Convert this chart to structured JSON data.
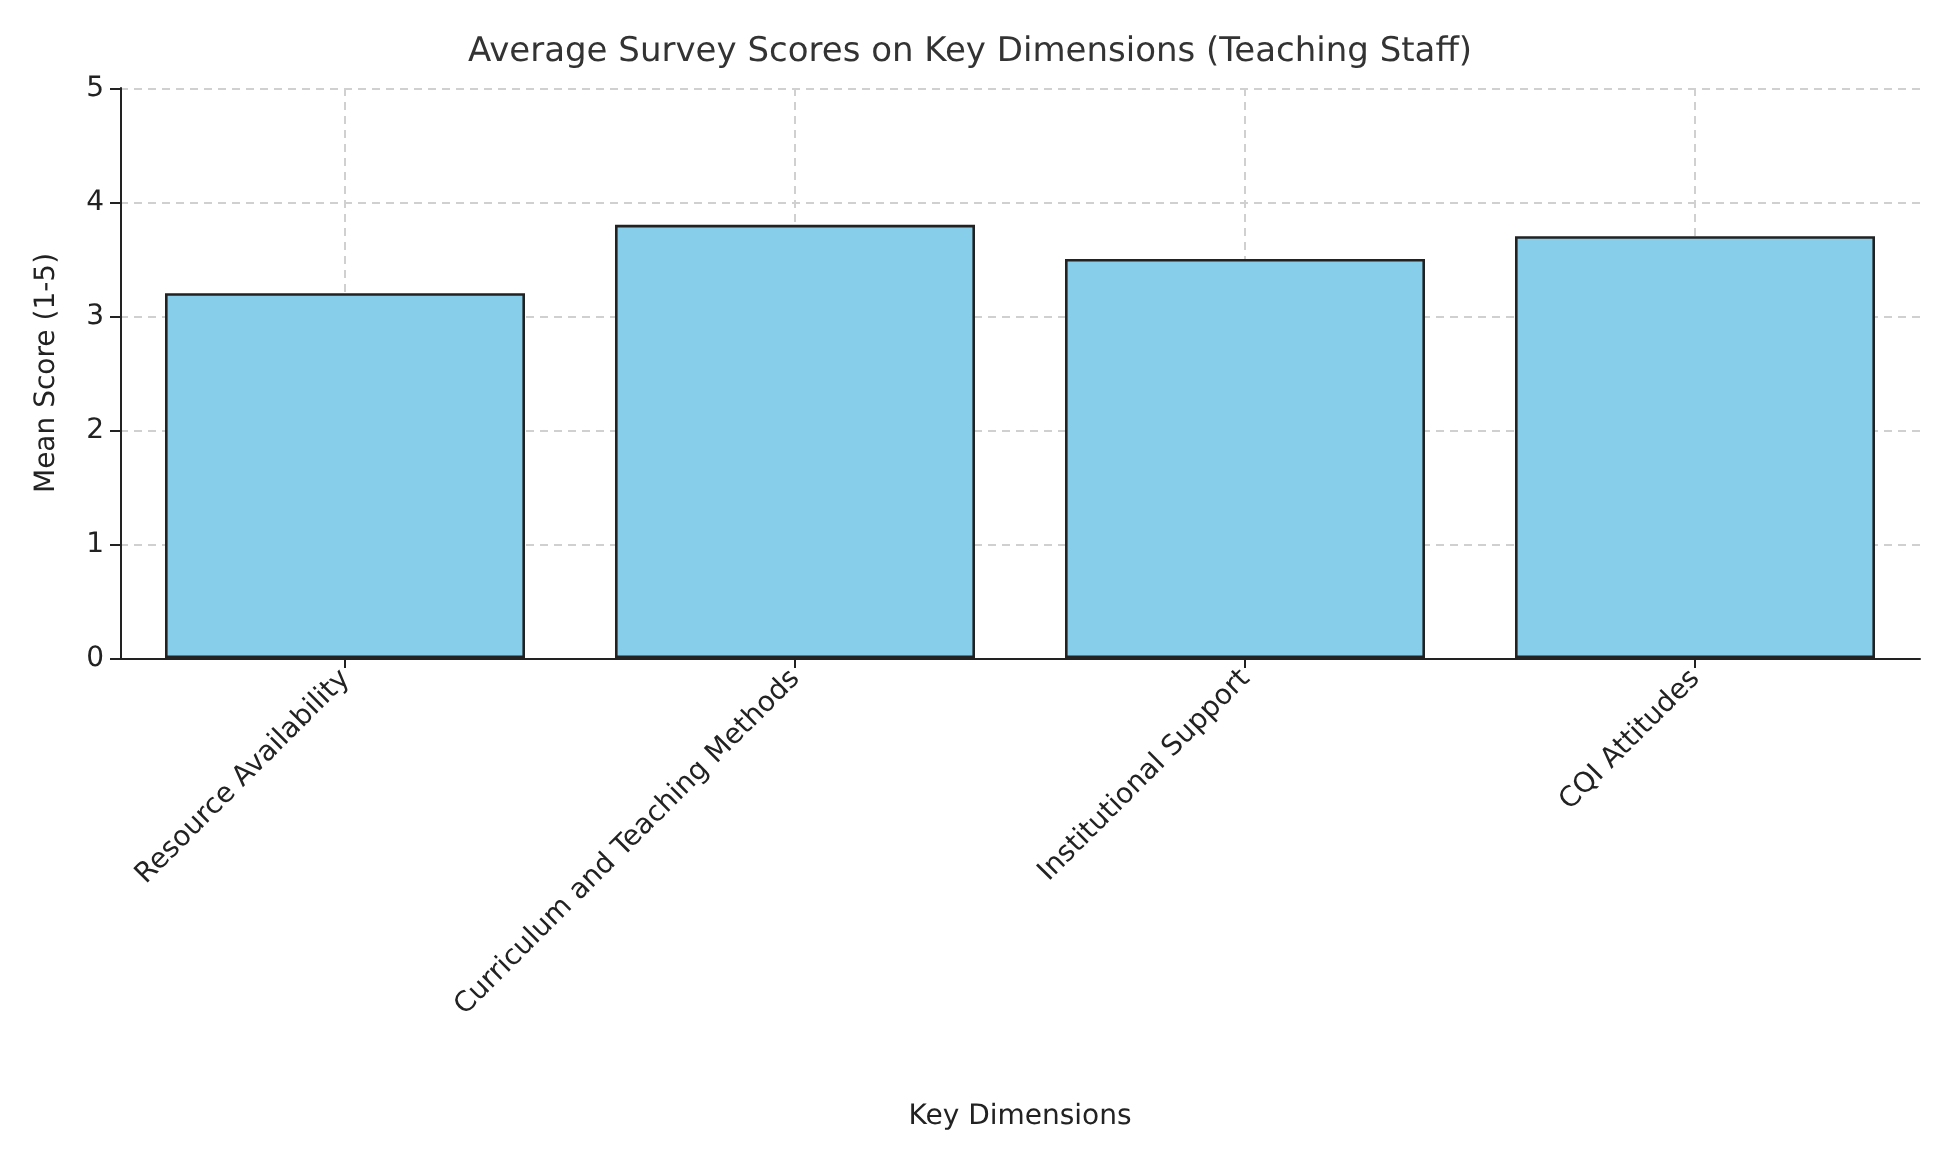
{
  "chart_data": {
    "type": "bar",
    "title": "Average Survey Scores on Key Dimensions (Teaching Staff)",
    "xlabel": "Key Dimensions",
    "ylabel": "Mean Score (1-5)",
    "categories": [
      "Resource Availability",
      "Curriculum and Teaching Methods",
      "Institutional Support",
      "CQI Attitudes"
    ],
    "values": [
      3.2,
      3.8,
      3.5,
      3.7
    ],
    "color": "#87ceeb",
    "ylim": [
      0,
      5
    ],
    "yticks": [
      0,
      1,
      2,
      3,
      4,
      5
    ],
    "grid": true
  }
}
